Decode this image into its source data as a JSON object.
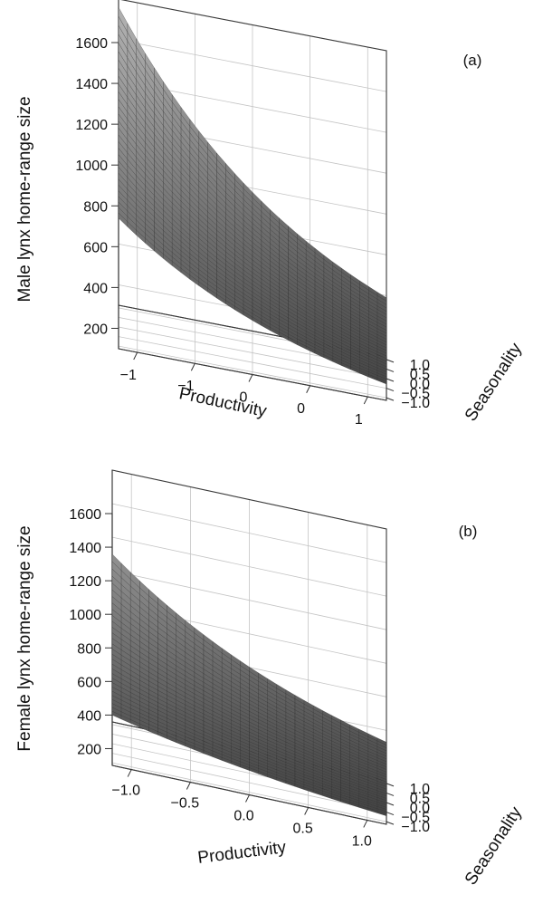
{
  "chart_data": [
    {
      "type": "surface",
      "panel_label": "(a)",
      "zlabel": "Male lynx home-range size",
      "xlabel": "Productivity",
      "ylabel": "Seasonality",
      "z_ticks": [
        200,
        400,
        600,
        800,
        1000,
        1200,
        1400,
        1600
      ],
      "zlim": [
        100,
        1600
      ],
      "x_tick_labels": [
        "−1",
        "−1",
        "0",
        "0",
        "1"
      ],
      "y_tick_labels": [
        "−1.0",
        "−0.5",
        "0.0",
        "0.5",
        "1.0"
      ],
      "xlim": [
        -1.0,
        1.2
      ],
      "ylim": [
        -1.0,
        1.0
      ],
      "grid": true,
      "surface": {
        "x": [
          -1.0,
          1.2
        ],
        "y": [
          -1.0,
          1.0
        ],
        "z_corners": {
          "xmin_ymin": 740,
          "xmin_ymax": 1560,
          "xmax_ymin": 180,
          "xmax_ymax": 390
        }
      }
    },
    {
      "type": "surface",
      "panel_label": "(b)",
      "zlabel": "Female lynx home-range size",
      "xlabel": "Productivity",
      "ylabel": "Seasonality",
      "z_ticks": [
        200,
        400,
        600,
        800,
        1000,
        1200,
        1400,
        1600
      ],
      "zlim": [
        100,
        1600
      ],
      "x_tick_labels": [
        "−1.0",
        "−0.5",
        "0.0",
        "0.5",
        "1.0"
      ],
      "y_tick_labels": [
        "−1.0",
        "−0.5",
        "0.0",
        "0.5",
        "1.0"
      ],
      "xlim": [
        -1.0,
        1.2
      ],
      "ylim": [
        -1.0,
        1.0
      ],
      "grid": true,
      "surface": {
        "x": [
          -1.0,
          1.2
        ],
        "y": [
          -1.0,
          1.0
        ],
        "z_corners": {
          "xmin_ymin": 400,
          "xmin_ymax": 1100,
          "xmax_ymin": 150,
          "xmax_ymax": 330
        }
      }
    }
  ]
}
